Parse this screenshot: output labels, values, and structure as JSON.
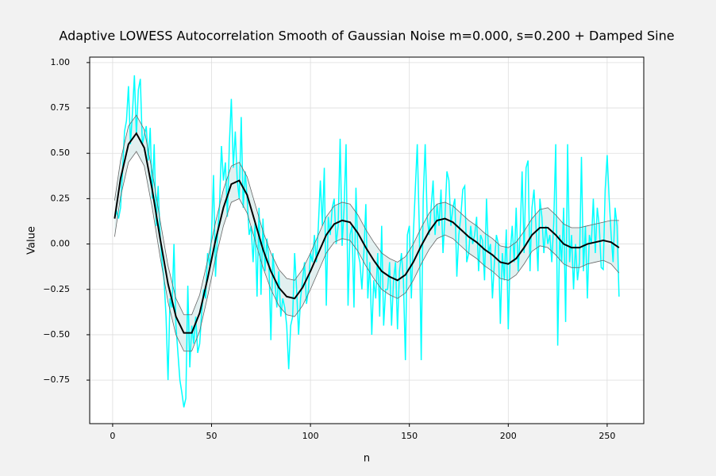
{
  "chart_data": {
    "type": "line",
    "title": "Adaptive LOWESS Autocorrelation Smooth of Gaussian Noise m=0.000, s=0.200 + Damped Sine",
    "xlabel": "n",
    "ylabel": "Value",
    "xlim": [
      -11.6,
      268.5
    ],
    "ylim": [
      -0.99,
      1.03
    ],
    "xticks": [
      0,
      50,
      100,
      150,
      200,
      250
    ],
    "yticks": [
      {
        "value": -0.75,
        "label": "−0.75"
      },
      {
        "value": -0.5,
        "label": "−0.50"
      },
      {
        "value": -0.25,
        "label": "−0.25"
      },
      {
        "value": 0,
        "label": "0.00"
      },
      {
        "value": 0.25,
        "label": "0.25"
      },
      {
        "value": 0.5,
        "label": "0.50"
      },
      {
        "value": 0.75,
        "label": "0.75"
      },
      {
        "value": 1,
        "label": "1.00"
      }
    ],
    "grid": true,
    "color": "#00ffff",
    "x": [
      1,
      2,
      3,
      4,
      5,
      6,
      7,
      8,
      9,
      10,
      11,
      12,
      13,
      14,
      15,
      16,
      17,
      18,
      19,
      20,
      21,
      22,
      23,
      24,
      25,
      26,
      27,
      28,
      29,
      30,
      31,
      32,
      33,
      34,
      35,
      36,
      37,
      38,
      39,
      40,
      41,
      42,
      43,
      44,
      45,
      46,
      47,
      48,
      49,
      50,
      51,
      52,
      53,
      54,
      55,
      56,
      57,
      58,
      59,
      60,
      61,
      62,
      63,
      64,
      65,
      66,
      67,
      68,
      69,
      70,
      71,
      72,
      73,
      74,
      75,
      76,
      77,
      78,
      79,
      80,
      81,
      82,
      83,
      84,
      85,
      86,
      87,
      88,
      89,
      90,
      91,
      92,
      93,
      94,
      95,
      96,
      97,
      98,
      99,
      100,
      101,
      102,
      103,
      104,
      105,
      106,
      107,
      108,
      109,
      110,
      111,
      112,
      113,
      114,
      115,
      116,
      117,
      118,
      119,
      120,
      121,
      122,
      123,
      124,
      125,
      126,
      127,
      128,
      129,
      130,
      131,
      132,
      133,
      134,
      135,
      136,
      137,
      138,
      139,
      140,
      141,
      142,
      143,
      144,
      145,
      146,
      147,
      148,
      149,
      150,
      151,
      152,
      153,
      154,
      155,
      156,
      157,
      158,
      159,
      160,
      161,
      162,
      163,
      164,
      165,
      166,
      167,
      168,
      169,
      170,
      171,
      172,
      173,
      174,
      175,
      176,
      177,
      178,
      179,
      180,
      181,
      182,
      183,
      184,
      185,
      186,
      187,
      188,
      189,
      190,
      191,
      192,
      193,
      194,
      195,
      196,
      197,
      198,
      199,
      200,
      201,
      202,
      203,
      204,
      205,
      206,
      207,
      208,
      209,
      210,
      211,
      212,
      213,
      214,
      215,
      216,
      217,
      218,
      219,
      220,
      221,
      222,
      223,
      224,
      225,
      226,
      227,
      228,
      229,
      230,
      231,
      232,
      233,
      234,
      235,
      236,
      237,
      238,
      239,
      240,
      241,
      242,
      243,
      244,
      245,
      246,
      247,
      248,
      249,
      250,
      251,
      252,
      253,
      254,
      255,
      256
    ],
    "values": [
      0.14,
      0.18,
      0.14,
      0.2,
      0.4,
      0.62,
      0.68,
      0.87,
      0.55,
      0.72,
      0.93,
      0.6,
      0.85,
      0.91,
      0.55,
      0.6,
      0.65,
      0.46,
      0.64,
      0.25,
      0.55,
      0.1,
      0.32,
      0.05,
      -0.1,
      -0.2,
      -0.4,
      -0.75,
      -0.3,
      -0.35,
      0.0,
      -0.45,
      -0.6,
      -0.75,
      -0.82,
      -0.9,
      -0.85,
      -0.23,
      -0.68,
      -0.45,
      -0.55,
      -0.4,
      -0.6,
      -0.55,
      -0.38,
      -0.25,
      -0.3,
      -0.05,
      -0.12,
      0.05,
      0.38,
      -0.18,
      0.05,
      0.2,
      0.54,
      0.35,
      0.45,
      0.15,
      0.55,
      0.8,
      0.42,
      0.62,
      0.35,
      0.25,
      0.7,
      0.2,
      0.4,
      0.25,
      0.05,
      0.1,
      -0.1,
      0.12,
      -0.29,
      0.2,
      -0.28,
      0.14,
      -0.15,
      0.03,
      -0.1,
      -0.53,
      -0.05,
      -0.2,
      -0.35,
      -0.15,
      -0.4,
      -0.3,
      -0.35,
      -0.45,
      -0.69,
      -0.45,
      -0.4,
      -0.05,
      -0.25,
      -0.5,
      -0.3,
      -0.2,
      -0.1,
      -0.33,
      -0.25,
      -0.05,
      -0.1,
      0.05,
      -0.1,
      0.1,
      0.35,
      0.1,
      0.42,
      -0.34,
      0.15,
      0.05,
      0.2,
      0.25,
      0.0,
      0.1,
      0.58,
      -0.01,
      0.2,
      0.55,
      -0.34,
      0.05,
      0.1,
      -0.35,
      0.31,
      -0.05,
      -0.1,
      -0.25,
      -0.05,
      0.22,
      -0.3,
      -0.1,
      -0.5,
      -0.2,
      -0.3,
      -0.05,
      -0.4,
      0.1,
      -0.45,
      -0.25,
      -0.25,
      -0.1,
      -0.45,
      -0.2,
      -0.1,
      -0.47,
      -0.15,
      -0.05,
      -0.2,
      -0.64,
      0.05,
      0.1,
      -0.3,
      0.05,
      0.3,
      0.55,
      0.1,
      -0.64,
      0.25,
      0.55,
      0.15,
      0.05,
      0.2,
      0.35,
      0.05,
      0.22,
      0.1,
      0.3,
      -0.05,
      0.15,
      0.4,
      0.35,
      0.1,
      0.2,
      0.25,
      -0.18,
      0.05,
      0.15,
      0.3,
      0.32,
      -0.1,
      -0.05,
      0.1,
      0.0,
      0.05,
      0.15,
      -0.15,
      0.05,
      0.02,
      -0.2,
      0.25,
      -0.05,
      0.0,
      -0.3,
      -0.1,
      0.05,
      0.0,
      -0.44,
      -0.05,
      -0.2,
      0.08,
      -0.47,
      -0.05,
      0.1,
      -0.1,
      0.2,
      -0.15,
      0.05,
      0.4,
      -0.05,
      0.42,
      0.46,
      -0.15,
      0.2,
      0.3,
      0.1,
      -0.15,
      0.25,
      0.15,
      -0.05,
      0.1,
      0.0,
      0.05,
      -0.1,
      0.12,
      0.55,
      -0.56,
      0.05,
      -0.1,
      0.2,
      -0.43,
      0.55,
      -0.1,
      0.05,
      -0.25,
      0.0,
      -0.2,
      -0.1,
      0.48,
      -0.15,
      0.1,
      -0.3,
      0.05,
      0.0,
      0.25,
      -0.05,
      0.2,
      0.1,
      -0.13,
      -0.14,
      0.3,
      0.49,
      0.25,
      0.05,
      -0.1,
      0.2,
      0.1,
      -0.29
    ],
    "smooth": {
      "color": "#000000",
      "x": [
        1,
        4,
        8,
        12,
        16,
        20,
        24,
        28,
        32,
        36,
        40,
        44,
        48,
        52,
        56,
        60,
        64,
        68,
        72,
        76,
        80,
        84,
        88,
        92,
        96,
        100,
        104,
        108,
        112,
        116,
        120,
        124,
        128,
        132,
        136,
        140,
        144,
        148,
        152,
        156,
        160,
        164,
        168,
        172,
        176,
        180,
        184,
        188,
        192,
        196,
        200,
        204,
        208,
        212,
        216,
        220,
        224,
        228,
        232,
        236,
        240,
        244,
        248,
        252,
        256
      ],
      "values": [
        0.14,
        0.36,
        0.55,
        0.61,
        0.53,
        0.3,
        0.03,
        -0.22,
        -0.4,
        -0.49,
        -0.49,
        -0.38,
        -0.19,
        0.02,
        0.2,
        0.33,
        0.35,
        0.27,
        0.12,
        -0.03,
        -0.15,
        -0.24,
        -0.29,
        -0.3,
        -0.24,
        -0.15,
        -0.05,
        0.05,
        0.11,
        0.13,
        0.12,
        0.06,
        -0.02,
        -0.09,
        -0.15,
        -0.18,
        -0.2,
        -0.17,
        -0.1,
        -0.01,
        0.07,
        0.13,
        0.14,
        0.12,
        0.08,
        0.04,
        0.01,
        -0.03,
        -0.06,
        -0.1,
        -0.11,
        -0.08,
        -0.02,
        0.05,
        0.09,
        0.09,
        0.05,
        0.0,
        -0.02,
        -0.02,
        0.0,
        0.01,
        0.02,
        0.01,
        -0.02
      ]
    },
    "band": {
      "color": "#666666",
      "fill": "#e2f0f0",
      "upper": [
        0.24,
        0.46,
        0.65,
        0.71,
        0.63,
        0.4,
        0.13,
        -0.12,
        -0.3,
        -0.39,
        -0.39,
        -0.28,
        -0.09,
        0.12,
        0.3,
        0.43,
        0.45,
        0.37,
        0.22,
        0.07,
        -0.05,
        -0.14,
        -0.19,
        -0.2,
        -0.14,
        -0.05,
        0.05,
        0.15,
        0.21,
        0.23,
        0.22,
        0.16,
        0.08,
        0.01,
        -0.05,
        -0.08,
        -0.1,
        -0.07,
        0.0,
        0.09,
        0.17,
        0.22,
        0.23,
        0.21,
        0.17,
        0.13,
        0.1,
        0.06,
        0.03,
        -0.01,
        -0.02,
        0.01,
        0.07,
        0.14,
        0.19,
        0.2,
        0.16,
        0.11,
        0.09,
        0.09,
        0.1,
        0.11,
        0.12,
        0.13,
        0.13
      ],
      "lower": [
        0.04,
        0.26,
        0.45,
        0.51,
        0.43,
        0.2,
        -0.07,
        -0.32,
        -0.5,
        -0.59,
        -0.59,
        -0.48,
        -0.29,
        -0.08,
        0.1,
        0.23,
        0.25,
        0.17,
        0.02,
        -0.13,
        -0.25,
        -0.34,
        -0.39,
        -0.4,
        -0.34,
        -0.25,
        -0.15,
        -0.05,
        0.01,
        0.03,
        0.02,
        -0.04,
        -0.12,
        -0.19,
        -0.25,
        -0.28,
        -0.3,
        -0.27,
        -0.2,
        -0.11,
        -0.03,
        0.03,
        0.05,
        0.03,
        -0.01,
        -0.05,
        -0.08,
        -0.12,
        -0.15,
        -0.19,
        -0.2,
        -0.17,
        -0.11,
        -0.04,
        -0.01,
        -0.02,
        -0.06,
        -0.11,
        -0.13,
        -0.13,
        -0.11,
        -0.1,
        -0.09,
        -0.11,
        -0.16
      ]
    }
  }
}
